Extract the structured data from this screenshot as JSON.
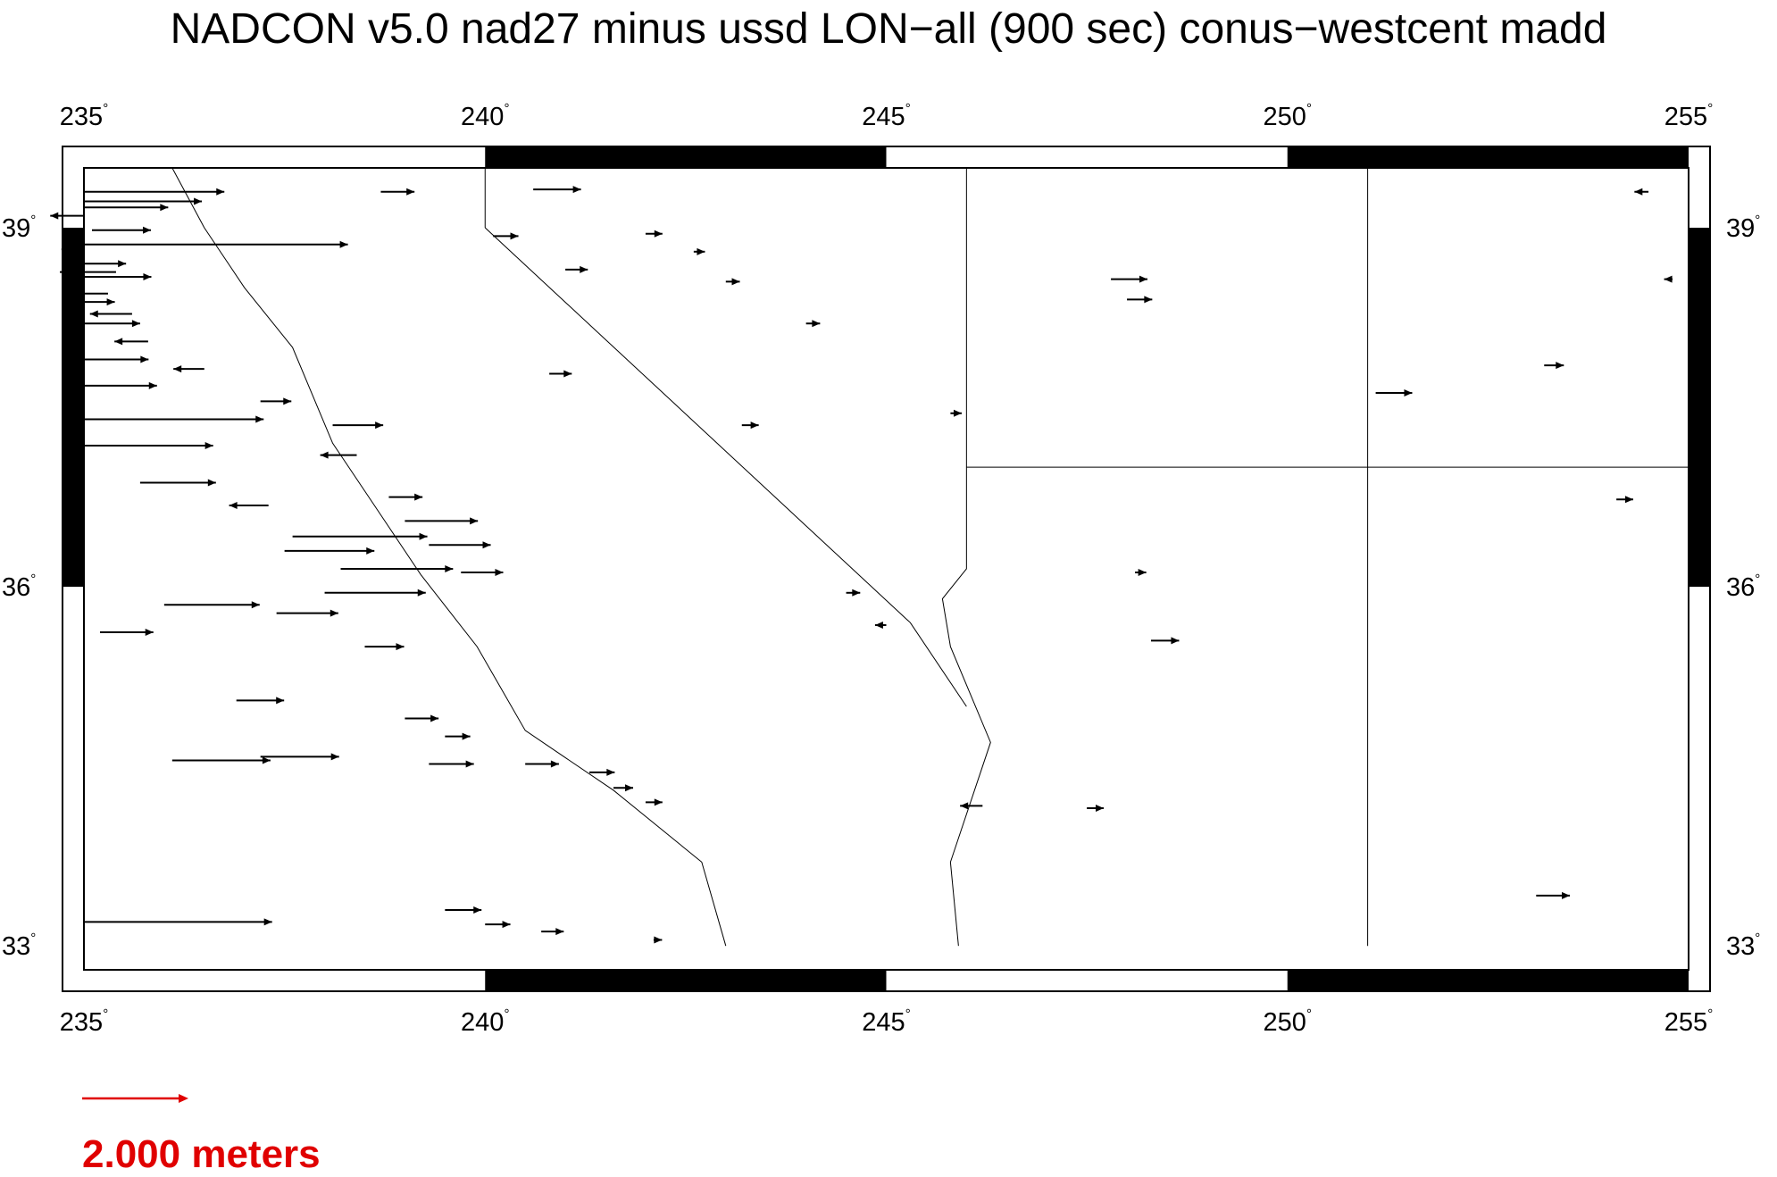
{
  "title": "NADCON v5.0 nad27 minus ussd LON−all (900 sec) conus−westcent madd",
  "colors": {
    "vectors": "#000000",
    "legend": "#e00000",
    "frame": "#000000"
  },
  "map": {
    "lon_range": [
      235,
      255
    ],
    "lat_range": [
      32.8,
      39.5
    ],
    "x_ticks": [
      {
        "value": 235,
        "label": "235"
      },
      {
        "value": 240,
        "label": "240"
      },
      {
        "value": 245,
        "label": "245"
      },
      {
        "value": 250,
        "label": "250"
      },
      {
        "value": 255,
        "label": "255"
      }
    ],
    "y_ticks": [
      {
        "value": 33,
        "label": "33"
      },
      {
        "value": 36,
        "label": "36"
      },
      {
        "value": 39,
        "label": "39"
      }
    ],
    "degree_symbol": "°"
  },
  "legend": {
    "label": "2.000 meters"
  },
  "chart_data": {
    "type": "vector-field",
    "title": "NADCON v5.0 nad27 minus ussd LON−all (900 sec) conus−westcent madd",
    "xlabel": "",
    "ylabel": "",
    "xlim": [
      235,
      255
    ],
    "ylim": [
      32.8,
      39.5
    ],
    "x_tick_labels": [
      "235",
      "240",
      "245",
      "250",
      "255"
    ],
    "y_tick_labels": [
      "33",
      "36",
      "39"
    ],
    "reference_vector": {
      "length_m": 2.0,
      "label": "2.000 meters"
    },
    "vectors": [
      [
        235.0,
        39.3,
        5.0
      ],
      [
        235.0,
        39.22,
        4.2
      ],
      [
        235.0,
        39.17,
        3.0
      ],
      [
        235.0,
        39.1,
        -1.2
      ],
      [
        235.1,
        38.98,
        2.1
      ],
      [
        235.0,
        38.86,
        9.4
      ],
      [
        235.0,
        38.82,
        -0.8
      ],
      [
        235.0,
        38.7,
        1.5
      ],
      [
        235.4,
        38.63,
        -2.0
      ],
      [
        235.0,
        38.59,
        2.4
      ],
      [
        235.3,
        38.45,
        -1.4
      ],
      [
        235.0,
        38.38,
        1.1
      ],
      [
        235.6,
        38.28,
        -1.5
      ],
      [
        235.0,
        38.2,
        2.0
      ],
      [
        235.8,
        38.05,
        -1.2
      ],
      [
        235.0,
        37.9,
        2.3
      ],
      [
        236.5,
        37.82,
        -1.1
      ],
      [
        235.0,
        37.68,
        2.6
      ],
      [
        237.2,
        37.55,
        1.1
      ],
      [
        235.0,
        37.4,
        6.4
      ],
      [
        238.1,
        37.35,
        1.8
      ],
      [
        235.0,
        37.18,
        4.6
      ],
      [
        238.4,
        37.1,
        -1.3
      ],
      [
        235.7,
        36.87,
        2.7
      ],
      [
        238.8,
        36.75,
        1.2
      ],
      [
        237.3,
        36.68,
        -1.4
      ],
      [
        239.0,
        36.55,
        2.6
      ],
      [
        237.6,
        36.42,
        4.8
      ],
      [
        239.3,
        36.35,
        2.2
      ],
      [
        237.5,
        36.3,
        3.2
      ],
      [
        238.2,
        36.15,
        4.0
      ],
      [
        239.7,
        36.12,
        1.5
      ],
      [
        238.0,
        35.95,
        3.6
      ],
      [
        236.0,
        35.85,
        3.4
      ],
      [
        237.4,
        35.78,
        2.2
      ],
      [
        235.2,
        35.62,
        1.9
      ],
      [
        238.5,
        35.5,
        1.4
      ],
      [
        236.9,
        35.05,
        1.7
      ],
      [
        239.0,
        34.9,
        1.2
      ],
      [
        239.5,
        34.75,
        0.9
      ],
      [
        236.1,
        34.55,
        3.5
      ],
      [
        237.2,
        34.58,
        2.8
      ],
      [
        239.3,
        34.52,
        1.6
      ],
      [
        240.5,
        34.52,
        1.2
      ],
      [
        241.3,
        34.45,
        0.9
      ],
      [
        241.6,
        34.32,
        0.7
      ],
      [
        242.0,
        34.2,
        0.6
      ],
      [
        235.0,
        33.2,
        6.7
      ],
      [
        239.5,
        33.3,
        1.3
      ],
      [
        240.0,
        33.18,
        0.9
      ],
      [
        240.7,
        33.12,
        0.8
      ],
      [
        242.1,
        33.05,
        0.3
      ],
      [
        240.6,
        39.32,
        1.7
      ],
      [
        238.7,
        39.3,
        1.2
      ],
      [
        240.1,
        38.93,
        0.9
      ],
      [
        241.0,
        38.65,
        0.8
      ],
      [
        242.0,
        38.95,
        0.6
      ],
      [
        242.6,
        38.8,
        0.4
      ],
      [
        243.0,
        38.55,
        0.5
      ],
      [
        244.0,
        38.2,
        0.5
      ],
      [
        245.8,
        37.45,
        0.4
      ],
      [
        240.8,
        37.78,
        0.8
      ],
      [
        243.2,
        37.35,
        0.6
      ],
      [
        244.5,
        35.95,
        0.5
      ],
      [
        245.0,
        35.68,
        -0.4
      ],
      [
        246.2,
        34.17,
        -0.8
      ],
      [
        247.5,
        34.15,
        0.6
      ],
      [
        248.1,
        36.12,
        0.4
      ],
      [
        248.3,
        35.55,
        1.0
      ],
      [
        247.8,
        38.57,
        1.3
      ],
      [
        248.0,
        38.4,
        0.9
      ],
      [
        251.1,
        37.62,
        1.3
      ],
      [
        253.2,
        37.85,
        0.7
      ],
      [
        254.1,
        36.73,
        0.6
      ],
      [
        253.1,
        33.42,
        1.2
      ],
      [
        254.5,
        39.3,
        -0.5
      ],
      [
        254.8,
        38.57,
        -0.3
      ]
    ]
  }
}
